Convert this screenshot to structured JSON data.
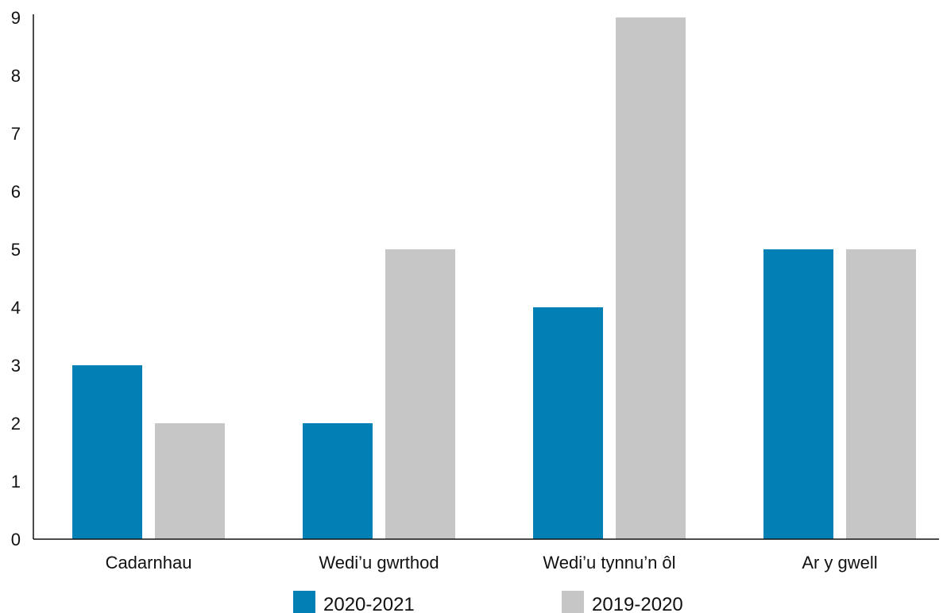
{
  "chart_data": {
    "type": "bar",
    "categories": [
      "Cadarnhau",
      "Wedi’u gwrthod",
      "Wedi’u tynnu’n ôl",
      "Ar y gwell"
    ],
    "series": [
      {
        "name": "2020-2021",
        "values": [
          3,
          2,
          4,
          5
        ],
        "color": "#0080b4"
      },
      {
        "name": "2019-2020",
        "values": [
          2,
          5,
          9,
          5
        ],
        "color": "#c6c6c6"
      }
    ],
    "title": "",
    "xlabel": "",
    "ylabel": "",
    "ylim": [
      0,
      9
    ],
    "yticks": [
      "0",
      "1",
      "2",
      "3",
      "4",
      "5",
      "6",
      "7",
      "8",
      "9"
    ],
    "grid": false,
    "legend_position": "bottom"
  }
}
